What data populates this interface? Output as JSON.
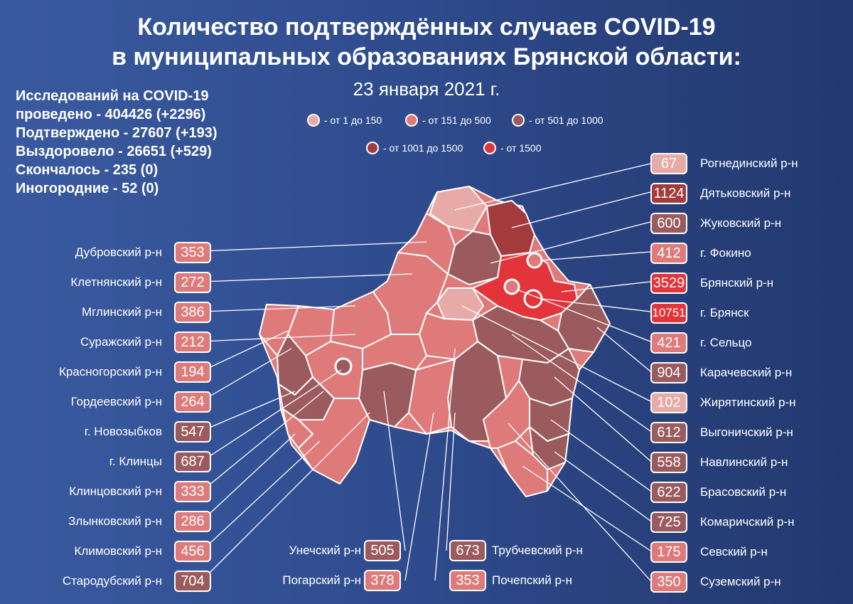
{
  "title_line1": "Количество подтверждённых случаев COVID-19",
  "title_line2": "в муниципальных образованиях Брянской области:",
  "date": "23 января 2021 г.",
  "stats": [
    "Исследований на COVID-19",
    "проведено - 404426 (+2296)",
    "Подтверждено - 27607 (+193)",
    "Выздоровело - 26651 (+529)",
    "Скончалось - 235 (0)",
    "Иногородние - 52 (0)"
  ],
  "legend": [
    {
      "label": "- от 1 до 150",
      "color": "#e8aaa6"
    },
    {
      "label": "- от 151 до 500",
      "color": "#df7a7a"
    },
    {
      "label": "- от 501 до 1000",
      "color": "#9b5b5e"
    },
    {
      "label": "- от 1001 до 1500",
      "color": "#a33a3c"
    },
    {
      "label": "- от 1500",
      "color": "#e2343a"
    }
  ],
  "colors": {
    "c1": "#e8aaa6",
    "c2": "#df7a7a",
    "c3": "#9b5b5e",
    "c4": "#a33a3c",
    "c5": "#e2343a"
  },
  "left": [
    {
      "name": "Дубровский р-н",
      "value": "353",
      "color": "#df7a7a"
    },
    {
      "name": "Клетнянский р-н",
      "value": "272",
      "color": "#df7a7a"
    },
    {
      "name": "Мглинский р-н",
      "value": "386",
      "color": "#df7a7a"
    },
    {
      "name": "Суражский р-н",
      "value": "212",
      "color": "#df7a7a"
    },
    {
      "name": "Красногорский р-н",
      "value": "194",
      "color": "#df7a7a"
    },
    {
      "name": "Гордеевский р-н",
      "value": "264",
      "color": "#df7a7a"
    },
    {
      "name": "г. Новозыбков",
      "value": "547",
      "color": "#9b5b5e"
    },
    {
      "name": "г. Клинцы",
      "value": "687",
      "color": "#9b5b5e"
    },
    {
      "name": "Клинцовский р-н",
      "value": "333",
      "color": "#df7a7a"
    },
    {
      "name": "Злынковский р-н",
      "value": "286",
      "color": "#df7a7a"
    },
    {
      "name": "Климовский  р-н",
      "value": "456",
      "color": "#df7a7a"
    },
    {
      "name": "Стародубский р-н",
      "value": "704",
      "color": "#9b5b5e"
    }
  ],
  "right": [
    {
      "name": "Рогнединский р-н",
      "value": "67",
      "color": "#e8aaa6"
    },
    {
      "name": "Дятьковский р-н",
      "value": "1124",
      "color": "#a33a3c"
    },
    {
      "name": "Жуковский р-н",
      "value": "600",
      "color": "#9b5b5e"
    },
    {
      "name": "г. Фокино",
      "value": "412",
      "color": "#df7a7a"
    },
    {
      "name": "Брянский р-н",
      "value": "3529",
      "color": "#e2343a"
    },
    {
      "name": "г. Брянск",
      "value": "10751",
      "color": "#e2343a"
    },
    {
      "name": "г. Сельцо",
      "value": "421",
      "color": "#df7a7a"
    },
    {
      "name": "Карачевский р-н",
      "value": "904",
      "color": "#9b5b5e"
    },
    {
      "name": "Жирятинский р-н",
      "value": "102",
      "color": "#e8aaa6"
    },
    {
      "name": "Выгоничский р-н",
      "value": "612",
      "color": "#9b5b5e"
    },
    {
      "name": "Навлинский р-н",
      "value": "558",
      "color": "#9b5b5e"
    },
    {
      "name": "Брасовский р-н",
      "value": "622",
      "color": "#9b5b5e"
    },
    {
      "name": "Комаричский р-н",
      "value": "725",
      "color": "#9b5b5e"
    },
    {
      "name": "Севский р-н",
      "value": "175",
      "color": "#df7a7a"
    },
    {
      "name": "Суземский р-н",
      "value": "350",
      "color": "#df7a7a"
    }
  ],
  "bottom": [
    {
      "name": "Унечский р-н",
      "value": "505",
      "color": "#9b5b5e"
    },
    {
      "name": "Погарский р-н",
      "value": "378",
      "color": "#df7a7a"
    },
    {
      "name": "Трубчевский р-н",
      "value": "673",
      "color": "#9b5b5e"
    },
    {
      "name": "Почепский р-н",
      "value": "353",
      "color": "#df7a7a"
    }
  ]
}
